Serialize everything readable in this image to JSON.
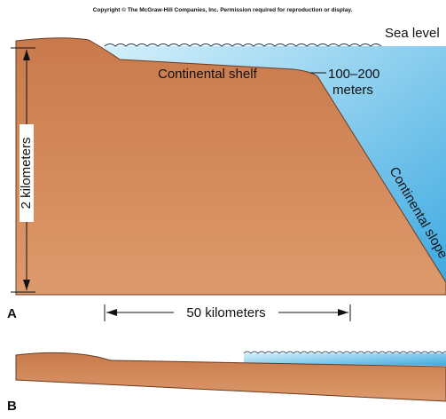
{
  "copyright": "Copyright © The McGraw-Hill Companies, Inc. Permission required for reproduction or display.",
  "panel_a": {
    "label": "A",
    "sea_level": "Sea level",
    "shelf": "Continental shelf",
    "depth_line1": "100–200",
    "depth_line2": "meters",
    "slope": "Continental slope",
    "height": "2 kilometers",
    "width": "50 kilometers"
  },
  "panel_b": {
    "label": "B"
  }
}
